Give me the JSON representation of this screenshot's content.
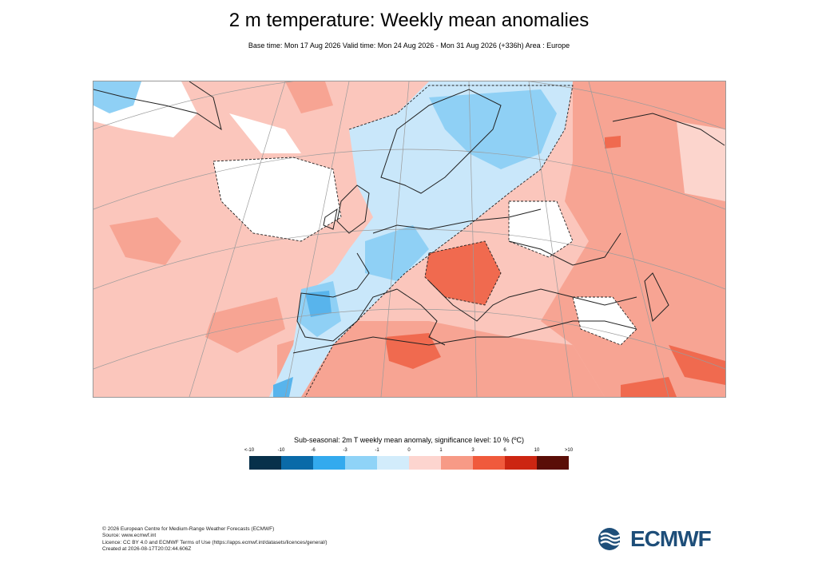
{
  "header": {
    "title": "2 m temperature: Weekly mean anomalies",
    "subtitle": "Base time: Mon 17 Aug 2026 Valid time: Mon 24 Aug 2026 - Mon 31 Aug 2026 (+336h) Area : Europe"
  },
  "legend": {
    "title": "Sub-seasonal: 2m T weekly mean anomaly, significance level: 10 % (ºC)",
    "labels": [
      "<-10",
      "-10",
      "-6",
      "-3",
      "-1",
      "0",
      "1",
      "3",
      "6",
      "10",
      ">10"
    ],
    "colors": [
      "#07304a",
      "#0a6aa8",
      "#33aaee",
      "#8fd3f7",
      "#d2ecfb",
      "#fdd5cf",
      "#f79a86",
      "#f05a3c",
      "#cc2612",
      "#a51405",
      "#5a0e07"
    ]
  },
  "map_colors": {
    "ocean_base": "#fbc6bc",
    "land_warm": "#f7a493",
    "land_hot": "#f06a4f",
    "neutral": "#ffffff",
    "cool_light": "#c9e7fa",
    "cool": "#8fd0f5",
    "cool_strong": "#58b4ec"
  },
  "footer": {
    "line1": "© 2026 European Centre for Medium-Range Weather Forecasts (ECMWF)",
    "line2": "Source: www.ecmwf.int",
    "line3": "Licence: CC BY 4.0 and ECMWF Terms of Use (https://apps.ecmwf.int/datasets/licences/general/)",
    "line4": "Created at 2026-08-17T20:02:44.606Z"
  },
  "logo": {
    "text": "ECMWF",
    "icon": "ecmwf-logo-icon"
  }
}
